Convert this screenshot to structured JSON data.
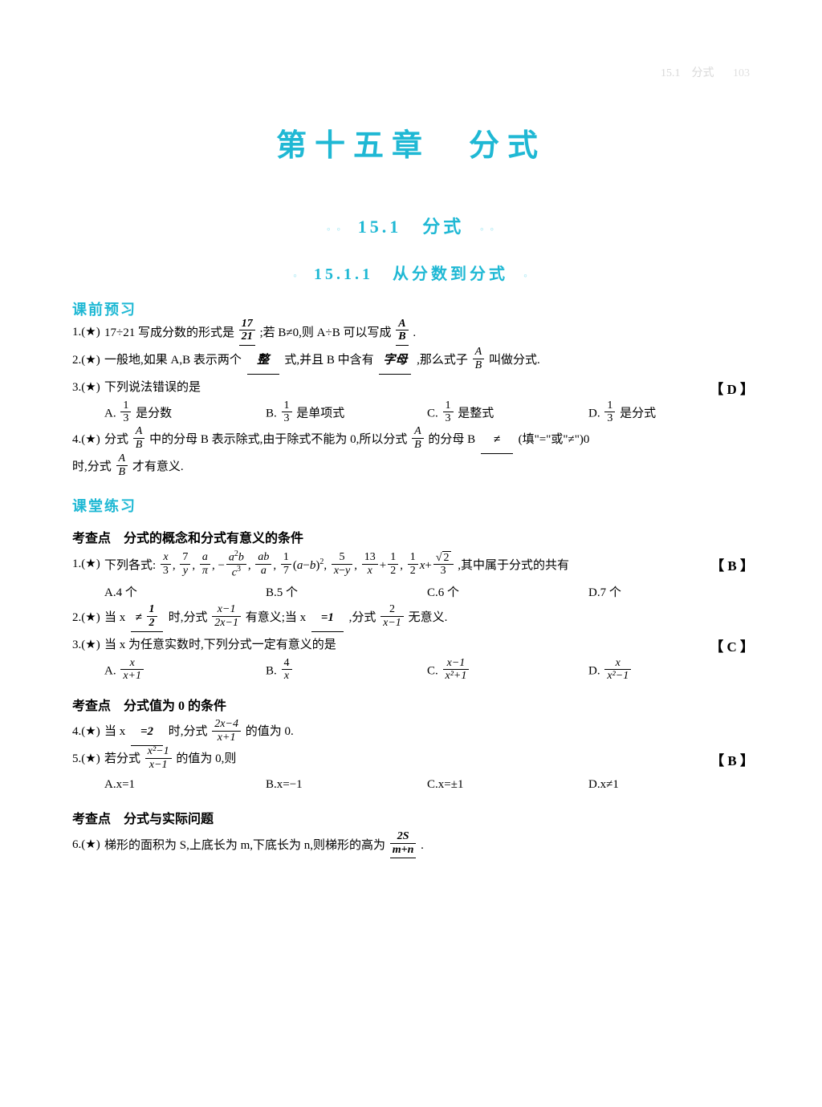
{
  "colors": {
    "accent": "#1fb8d4",
    "decor": "#9de5f2",
    "text": "#000000",
    "header_light": "#e0e0e0",
    "background": "#ffffff"
  },
  "header": {
    "section_label": "15.1　分式",
    "page_number": "103"
  },
  "chapter": {
    "title": "第十五章　分式"
  },
  "section": {
    "title": "15.1　分式"
  },
  "subsection": {
    "title": "15.1.1　从分数到分式"
  },
  "preview": {
    "heading": "课前预习",
    "q1": {
      "num": "1.(★)",
      "text_a": "17÷21 写成分数的形式是",
      "ans1_n": "17",
      "ans1_d": "21",
      "text_b": ";若 B≠0,则 A÷B 可以写成",
      "ans2_n": "A",
      "ans2_d": "B",
      "text_c": "."
    },
    "q2": {
      "num": "2.(★)",
      "text_a": "一般地,如果 A,B 表示两个",
      "ans1": "整",
      "text_b": "式,并且 B 中含有",
      "ans2": "字母",
      "text_c": ",那么式子",
      "frac_n": "A",
      "frac_d": "B",
      "text_d": "叫做分式."
    },
    "q3": {
      "num": "3.(★)",
      "text": "下列说法错误的是",
      "answer": "【 D 】",
      "opts": {
        "A_pre": "A.",
        "A_n": "1",
        "A_d": "3",
        "A_post": "是分数",
        "B_pre": "B.",
        "B_n": "1",
        "B_d": "3",
        "B_post": "是单项式",
        "C_pre": "C.",
        "C_n": "1",
        "C_d": "3",
        "C_post": "是整式",
        "D_pre": "D.",
        "D_n": "1",
        "D_d": "3",
        "D_post": "是分式"
      }
    },
    "q4": {
      "num": "4.(★)",
      "text_a": "分式",
      "f1_n": "A",
      "f1_d": "B",
      "text_b": "中的分母 B 表示除式,由于除式不能为 0,所以分式",
      "f2_n": "A",
      "f2_d": "B",
      "text_c": "的分母 B",
      "ans": "≠",
      "text_d": "(填\"=\"或\"≠\")0",
      "cont_a": "时,分式",
      "f3_n": "A",
      "f3_d": "B",
      "cont_b": "才有意义."
    }
  },
  "practice": {
    "heading": "课堂练习",
    "topic1": "考查点　分式的概念和分式有意义的条件",
    "q1": {
      "num": "1.(★)",
      "text": "下列各式:",
      "tail": ",其中属于分式的共有",
      "answer": "【 B 】",
      "opts": {
        "A": "A.4 个",
        "B": "B.5 个",
        "C": "C.6 个",
        "D": "D.7 个"
      }
    },
    "q2": {
      "num": "2.(★)",
      "text_a": "当 x ",
      "ans1_pre": "≠",
      "ans1_n": "1",
      "ans1_d": "2",
      "text_b": "时,分式",
      "f1_n": "x−1",
      "f1_d": "2x−1",
      "text_c": "有意义;当 x ",
      "ans2": "=1",
      "text_d": ",分式",
      "f2_n": "2",
      "f2_d": "x−1",
      "text_e": "无意义."
    },
    "q3": {
      "num": "3.(★)",
      "text": "当 x 为任意实数时,下列分式一定有意义的是",
      "answer": "【 C 】",
      "opts": {
        "A_pre": "A.",
        "A_n": "x",
        "A_d": "x+1",
        "B_pre": "B.",
        "B_n": "4",
        "B_d": "x",
        "C_pre": "C.",
        "C_n": "x−1",
        "C_d": "x²+1",
        "D_pre": "D.",
        "D_n": "x",
        "D_d": "x²−1"
      }
    },
    "topic2": "考查点　分式值为 0 的条件",
    "q4": {
      "num": "4.(★)",
      "text_a": "当 x ",
      "ans": "=2",
      "text_b": "时,分式",
      "f_n": "2x−4",
      "f_d": "x+1",
      "text_c": "的值为 0."
    },
    "q5": {
      "num": "5.(★)",
      "text_a": "若分式",
      "f_n": "x²−1",
      "f_d": "x−1",
      "text_b": "的值为 0,则",
      "answer": "【 B 】",
      "opts": {
        "A": "A.x=1",
        "B": "B.x=−1",
        "C": "C.x=±1",
        "D": "D.x≠1"
      }
    },
    "topic3": "考查点　分式与实际问题",
    "q6": {
      "num": "6.(★)",
      "text_a": "梯形的面积为 S,上底长为 m,下底长为 n,则梯形的高为",
      "ans_n": "2S",
      "ans_d": "m+n",
      "text_b": "."
    }
  }
}
